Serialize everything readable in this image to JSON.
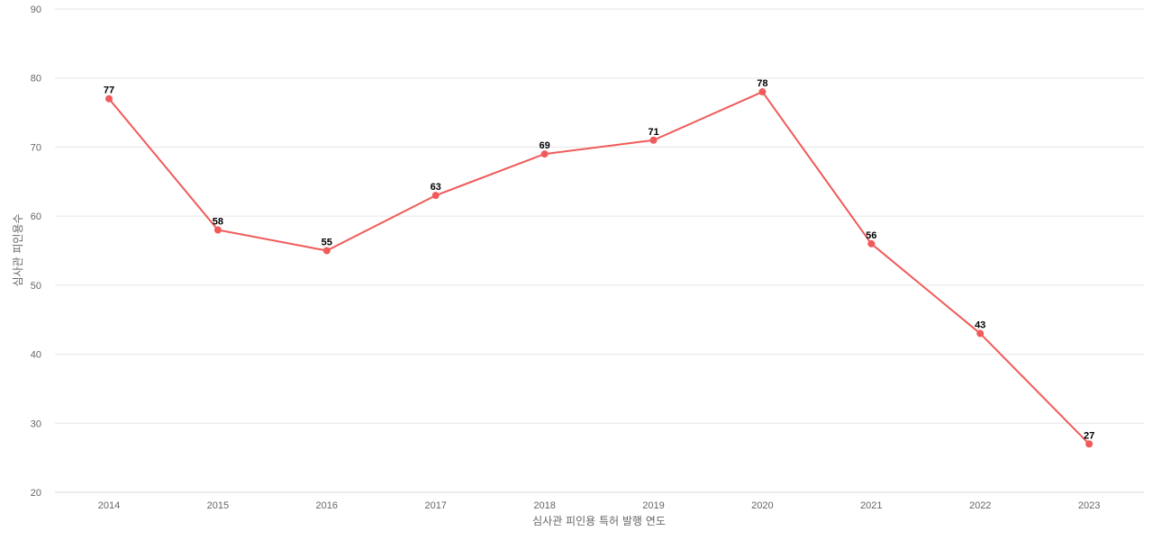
{
  "chart_data": {
    "type": "line",
    "title": "",
    "xlabel": "심사관 피인용 특허 발행 연도",
    "ylabel": "심사관 피인용수",
    "categories": [
      "2014",
      "2015",
      "2016",
      "2017",
      "2018",
      "2019",
      "2020",
      "2021",
      "2022",
      "2023"
    ],
    "series": [
      {
        "values": [
          77,
          58,
          55,
          63,
          69,
          71,
          78,
          56,
          43,
          27
        ],
        "color": "#f05a5a"
      }
    ],
    "ylim": [
      20,
      90
    ],
    "yticks": [
      20,
      30,
      40,
      50,
      60,
      70,
      80,
      90
    ],
    "grid": true,
    "legend": "none",
    "data_labels": true
  }
}
